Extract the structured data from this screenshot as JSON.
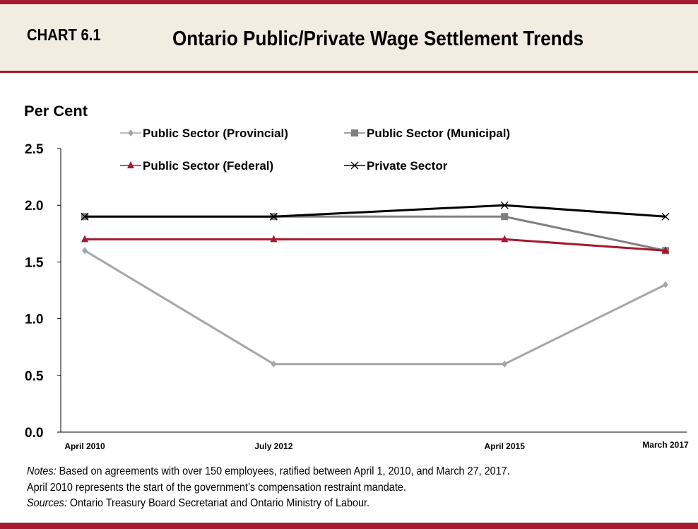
{
  "header": {
    "chart_number": "CHART 6.1",
    "title": "Ontario Public/Private Wage Settlement Trends"
  },
  "colors": {
    "accent": "#a6192e",
    "header_bg": "#f3ece2"
  },
  "chart_data": {
    "type": "line",
    "title": "Ontario Public/Private Wage Settlement Trends",
    "ylabel": "Per Cent",
    "xlabel": "",
    "categories": [
      "April 2010",
      "July 2012",
      "April 2015",
      "March 2017"
    ],
    "ylim": [
      0,
      2.5
    ],
    "yticks": [
      "0.0",
      "0.5",
      "1.0",
      "1.5",
      "2.0",
      "2.5"
    ],
    "grid": false,
    "legend": "top",
    "series": [
      {
        "name": "Public Sector (Provincial)",
        "values": [
          1.6,
          0.6,
          0.6,
          1.3
        ],
        "color": "#a6a6a6",
        "marker": "diamond"
      },
      {
        "name": "Public Sector (Municipal)",
        "values": [
          1.9,
          1.9,
          1.9,
          1.6
        ],
        "color": "#808080",
        "marker": "square"
      },
      {
        "name": "Public Sector (Federal)",
        "values": [
          1.7,
          1.7,
          1.7,
          1.6
        ],
        "color": "#a6192e",
        "marker": "triangle"
      },
      {
        "name": "Private Sector",
        "values": [
          1.9,
          1.9,
          2.0,
          1.9
        ],
        "color": "#000000",
        "marker": "x"
      }
    ]
  },
  "notes": {
    "notes_label": "Notes:",
    "notes_text": " Based on agreements with over 150 employees, ratified between April 1, 2010, and March 27, 2017.",
    "line2": "April 2010 represents the start of the government’s compensation restraint mandate.",
    "sources_label": "Sources:",
    "sources_text": " Ontario Treasury Board Secretariat and Ontario Ministry of Labour."
  }
}
